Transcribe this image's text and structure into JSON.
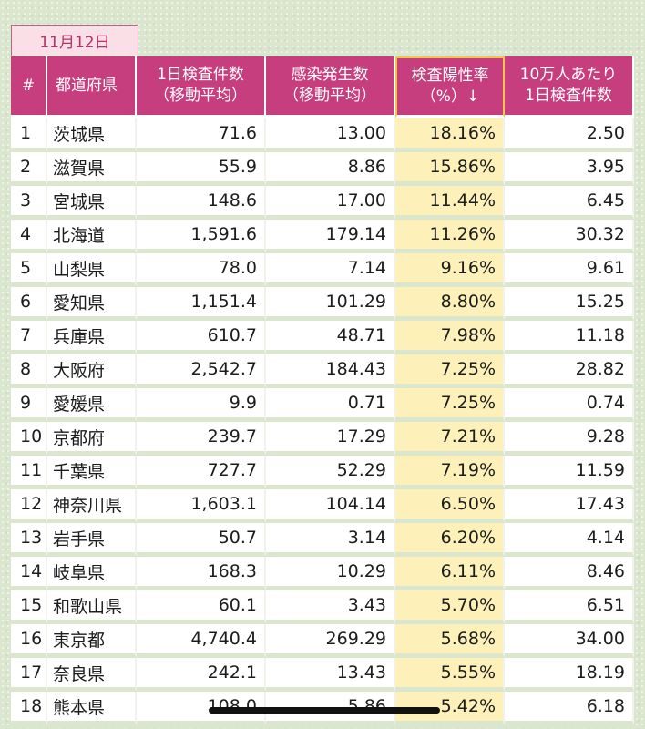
{
  "date": "11月12日",
  "headers": {
    "index": "#",
    "prefecture": "都道府県",
    "tests_line1": "1日検査件数",
    "tests_line2": "（移動平均）",
    "cases_line1": "感染発生数",
    "cases_line2": "（移動平均）",
    "positivity_line1": "検査陽性率",
    "positivity_line2": "（%）↓",
    "per100k_line1": "10万人あたり",
    "per100k_line2": "1日検査件数"
  },
  "rows": [
    {
      "idx": "1",
      "pref": "茨城県",
      "tests": "71.6",
      "cases": "13.00",
      "positivity": "18.16%",
      "per100k": "2.50"
    },
    {
      "idx": "2",
      "pref": "滋賀県",
      "tests": "55.9",
      "cases": "8.86",
      "positivity": "15.86%",
      "per100k": "3.95"
    },
    {
      "idx": "3",
      "pref": "宮城県",
      "tests": "148.6",
      "cases": "17.00",
      "positivity": "11.44%",
      "per100k": "6.45"
    },
    {
      "idx": "4",
      "pref": "北海道",
      "tests": "1,591.6",
      "cases": "179.14",
      "positivity": "11.26%",
      "per100k": "30.32"
    },
    {
      "idx": "5",
      "pref": "山梨県",
      "tests": "78.0",
      "cases": "7.14",
      "positivity": "9.16%",
      "per100k": "9.61"
    },
    {
      "idx": "6",
      "pref": "愛知県",
      "tests": "1,151.4",
      "cases": "101.29",
      "positivity": "8.80%",
      "per100k": "15.25"
    },
    {
      "idx": "7",
      "pref": "兵庫県",
      "tests": "610.7",
      "cases": "48.71",
      "positivity": "7.98%",
      "per100k": "11.18"
    },
    {
      "idx": "8",
      "pref": "大阪府",
      "tests": "2,542.7",
      "cases": "184.43",
      "positivity": "7.25%",
      "per100k": "28.82"
    },
    {
      "idx": "9",
      "pref": "愛媛県",
      "tests": "9.9",
      "cases": "0.71",
      "positivity": "7.25%",
      "per100k": "0.74"
    },
    {
      "idx": "10",
      "pref": "京都府",
      "tests": "239.7",
      "cases": "17.29",
      "positivity": "7.21%",
      "per100k": "9.28"
    },
    {
      "idx": "11",
      "pref": "千葉県",
      "tests": "727.7",
      "cases": "52.29",
      "positivity": "7.19%",
      "per100k": "11.59"
    },
    {
      "idx": "12",
      "pref": "神奈川県",
      "tests": "1,603.1",
      "cases": "104.14",
      "positivity": "6.50%",
      "per100k": "17.43"
    },
    {
      "idx": "13",
      "pref": "岩手県",
      "tests": "50.7",
      "cases": "3.14",
      "positivity": "6.20%",
      "per100k": "4.14"
    },
    {
      "idx": "14",
      "pref": "岐阜県",
      "tests": "168.3",
      "cases": "10.29",
      "positivity": "6.11%",
      "per100k": "8.46"
    },
    {
      "idx": "15",
      "pref": "和歌山県",
      "tests": "60.1",
      "cases": "3.43",
      "positivity": "5.70%",
      "per100k": "6.51"
    },
    {
      "idx": "16",
      "pref": "東京都",
      "tests": "4,740.4",
      "cases": "269.29",
      "positivity": "5.68%",
      "per100k": "34.00"
    },
    {
      "idx": "17",
      "pref": "奈良県",
      "tests": "242.1",
      "cases": "13.43",
      "positivity": "5.55%",
      "per100k": "18.19"
    },
    {
      "idx": "18",
      "pref": "熊本県",
      "tests": "108.0",
      "cases": "5.86",
      "positivity": "5.42%",
      "per100k": "6.18"
    }
  ],
  "colors": {
    "header_bg": "#c63e7e",
    "positivity_bg": "#fdf0b8",
    "positivity_border": "#f3c64a",
    "date_text": "#b8306a",
    "page_bg": "#dbe6cf"
  }
}
